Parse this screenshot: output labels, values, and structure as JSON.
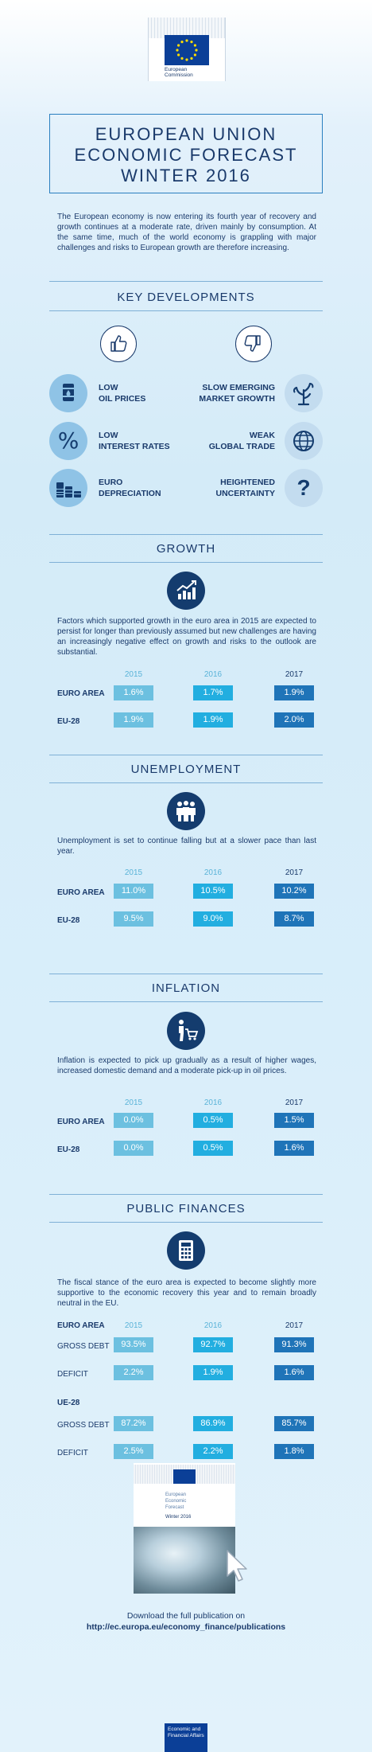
{
  "header": {
    "org_line1": "European",
    "org_line2": "Commission"
  },
  "title": {
    "line1": "EUROPEAN UNION",
    "line2": "ECONOMIC FORECAST",
    "line3": "WINTER 2016"
  },
  "intro": "The European economy is now entering its fourth year of recovery and growth continues at a moderate rate, driven mainly by consumption. At the same time, much of the world economy is grappling with major challenges and risks to European growth are therefore increasing.",
  "key_developments": {
    "title": "KEY DEVELOPMENTS",
    "positive": [
      {
        "line1": "LOW",
        "line2": "OIL PRICES",
        "icon": "oil-barrel-icon"
      },
      {
        "line1": "LOW",
        "line2": "INTEREST RATES",
        "icon": "percent-icon"
      },
      {
        "line1": "EURO",
        "line2": "DEPRECIATION",
        "icon": "euro-coins-icon"
      }
    ],
    "negative": [
      {
        "line1": "SLOW EMERGING",
        "line2": "MARKET GROWTH",
        "icon": "wilted-plant-icon"
      },
      {
        "line1": "WEAK",
        "line2": "GLOBAL TRADE",
        "icon": "globe-icon"
      },
      {
        "line1": "HEIGHTENED",
        "line2": "UNCERTAINTY",
        "icon": "question-mark-icon"
      }
    ],
    "question_glyph": "?",
    "percent_glyph": "%"
  },
  "growth": {
    "title": "GROWTH",
    "text": "Factors which supported growth in the euro area in 2015 are expected to persist for longer than previously assumed but new challenges are having an increasingly negative effect on growth and risks to the outlook are substantial.",
    "years": [
      "2015",
      "2016",
      "2017"
    ],
    "rows": [
      {
        "label": "EURO AREA",
        "values": [
          "1.6%",
          "1.7%",
          "1.9%"
        ]
      },
      {
        "label": "EU-28",
        "values": [
          "1.9%",
          "1.9%",
          "2.0%"
        ]
      }
    ]
  },
  "unemployment": {
    "title": "UNEMPLOYMENT",
    "text": "Unemployment is set to continue falling but at a slower pace than last year.",
    "years": [
      "2015",
      "2016",
      "2017"
    ],
    "rows": [
      {
        "label": "EURO AREA",
        "values": [
          "11.0%",
          "10.5%",
          "10.2%"
        ]
      },
      {
        "label": "EU-28",
        "values": [
          "9.5%",
          "9.0%",
          "8.7%"
        ]
      }
    ]
  },
  "inflation": {
    "title": "INFLATION",
    "text": "Inflation is expected to pick up gradually as a result of higher wages, increased domestic demand and a moderate pick-up in oil prices.",
    "years": [
      "2015",
      "2016",
      "2017"
    ],
    "rows": [
      {
        "label": "EURO AREA",
        "values": [
          "0.0%",
          "0.5%",
          "1.5%"
        ]
      },
      {
        "label": "EU-28",
        "values": [
          "0.0%",
          "0.5%",
          "1.6%"
        ]
      }
    ]
  },
  "public_finances": {
    "title": "PUBLIC FINANCES",
    "text": "The fiscal stance of the euro area is expected to become slightly more supportive to the economic recovery this year and to remain broadly neutral in the EU.",
    "years": [
      "2015",
      "2016",
      "2017"
    ],
    "group1": "EURO AREA",
    "group2": "UE-28",
    "euro_area": [
      {
        "label": "GROSS DEBT",
        "values": [
          "93.5%",
          "92.7%",
          "91.3%"
        ]
      },
      {
        "label": "DEFICIT",
        "values": [
          "2.2%",
          "1.9%",
          "1.6%"
        ]
      }
    ],
    "ue28": [
      {
        "label": "GROSS DEBT",
        "values": [
          "87.2%",
          "86.9%",
          "85.7%"
        ]
      },
      {
        "label": "DEFICIT",
        "values": [
          "2.5%",
          "2.2%",
          "1.8%"
        ]
      }
    ]
  },
  "publication": {
    "cover_line1": "European",
    "cover_line2": "Economic",
    "cover_line3": "Forecast",
    "cover_season": "Winter 2016",
    "download_text": "Download the full publication on",
    "download_url": "http://ec.europa.eu/economy_finance/publications"
  },
  "footer": {
    "line1": "Economic and",
    "line2": "Financial Affairs"
  },
  "colors": {
    "navy": "#1a3a6b",
    "value_2015": "#6cc0e0",
    "value_2016": "#22aee0",
    "value_2017": "#1f74b8"
  }
}
